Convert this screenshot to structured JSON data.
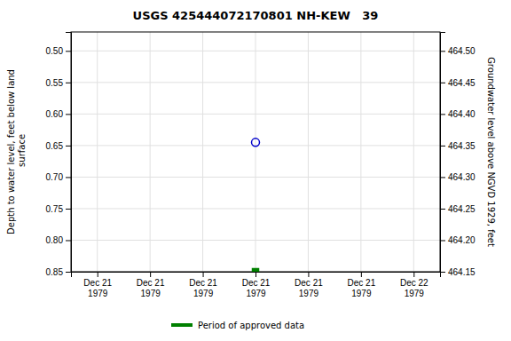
{
  "chart_data": {
    "type": "scatter",
    "title": "USGS 425444072170801 NH-KEW   39",
    "y_label": "Depth to water level, feet below land\n surface",
    "y2_label": "Groundwater level above NGVD 1929, feet",
    "categories": [
      "Dec 21\n1979",
      "Dec 21\n1979",
      "Dec 21\n1979",
      "Dec 21\n1979",
      "Dec 21\n1979",
      "Dec 21\n1979",
      "Dec 22\n1979"
    ],
    "series": [
      {
        "values": [
          null,
          null,
          null,
          0.645,
          null,
          null,
          null
        ],
        "color": "#0000cc",
        "marker": "circle-open"
      },
      {
        "name": "Period of approved data",
        "values": [
          null,
          null,
          null,
          0.85,
          null,
          null,
          null
        ],
        "color": "#008000",
        "marker": "square"
      }
    ],
    "ylim": [
      0.85,
      0.47
    ],
    "yticks": [
      {
        "value": 0.5,
        "label": "0.50"
      },
      {
        "value": 0.55,
        "label": "0.55"
      },
      {
        "value": 0.6,
        "label": "0.60"
      },
      {
        "value": 0.65,
        "label": "0.65"
      },
      {
        "value": 0.7,
        "label": "0.70"
      },
      {
        "value": 0.75,
        "label": "0.75"
      },
      {
        "value": 0.8,
        "label": "0.80"
      },
      {
        "value": 0.85,
        "label": "0.85"
      }
    ],
    "y2lim": [
      464.15,
      464.53
    ],
    "y2ticks": [
      {
        "value": 464.5,
        "label": "464.50"
      },
      {
        "value": 464.45,
        "label": "464.45"
      },
      {
        "value": 464.4,
        "label": "464.40"
      },
      {
        "value": 464.35,
        "label": "464.35"
      },
      {
        "value": 464.3,
        "label": "464.30"
      },
      {
        "value": 464.25,
        "label": "464.25"
      },
      {
        "value": 464.2,
        "label": "464.20"
      },
      {
        "value": 464.15,
        "label": "464.15"
      }
    ],
    "grid": true,
    "legend": "bottom"
  }
}
